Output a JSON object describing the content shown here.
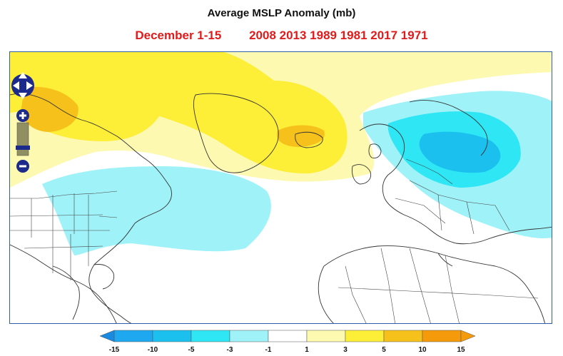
{
  "header": {
    "title": "Average MSLP Anomaly (mb)",
    "date_range": "December 1-15",
    "analog_years": "2008 2013 1989 1981 2017 1971"
  },
  "map": {
    "zoom_controls": {
      "pan_icon": "pan-arrows-icon",
      "zoom_in_icon": "plus-icon",
      "zoom_out_icon": "minus-icon"
    }
  },
  "legend": {
    "ticks": [
      "-15",
      "-10",
      "-5",
      "-3",
      "-1",
      "1",
      "3",
      "5",
      "10",
      "15"
    ],
    "colors": [
      "#1ea8f0",
      "#1bc0ee",
      "#2ee6f4",
      "#9ff2f8",
      "#ffffff",
      "#fdf9b0",
      "#fdee38",
      "#f7c11c",
      "#f59a0a"
    ],
    "low_arrow_color": "#1a8ae0",
    "high_arrow_color": "#f59a0a"
  }
}
